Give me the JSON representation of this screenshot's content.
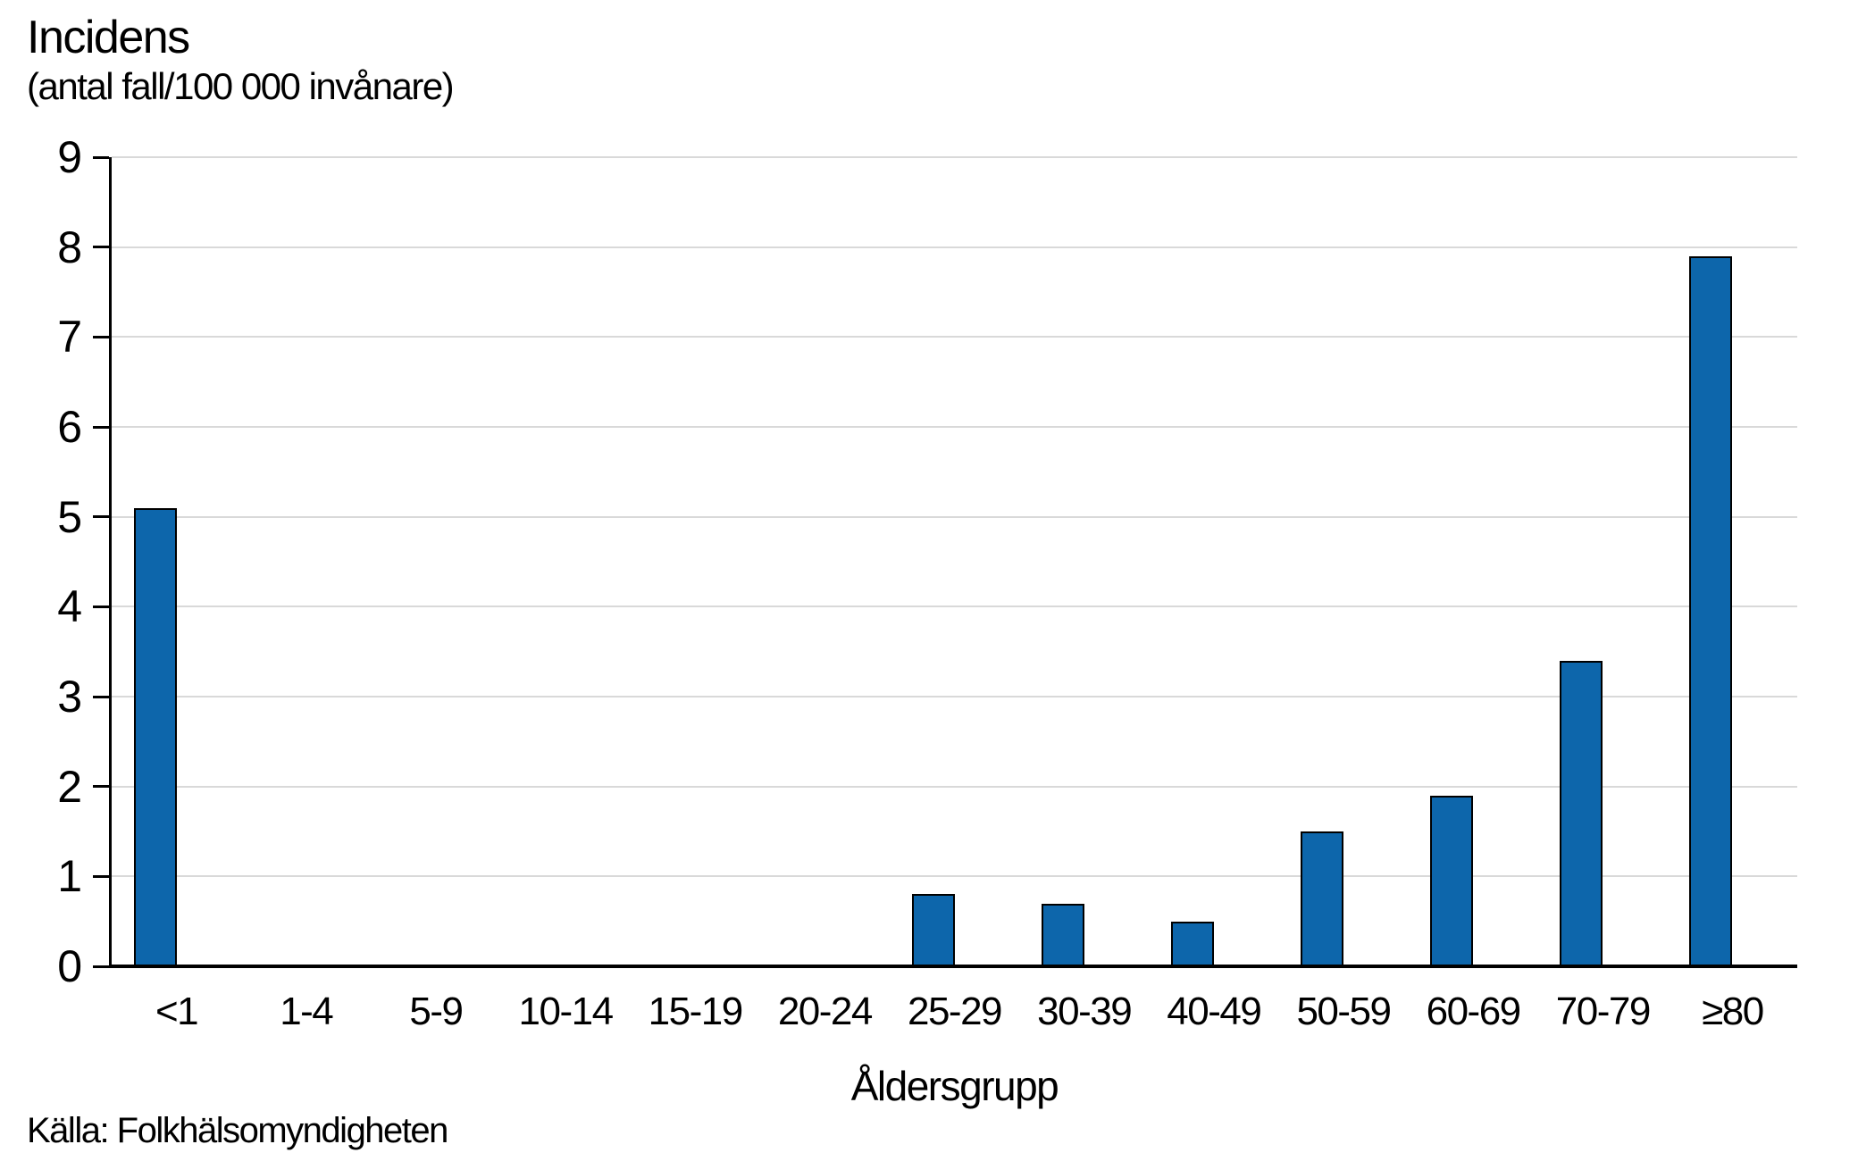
{
  "chart_data": {
    "type": "bar",
    "title": "Incidens",
    "subtitle": "(antal fall/100 000 invånare)",
    "categories": [
      "<1",
      "1-4",
      "5-9",
      "10-14",
      "15-19",
      "20-24",
      "25-29",
      "30-39",
      "40-49",
      "50-59",
      "60-69",
      "70-79",
      "≥80"
    ],
    "values": [
      5.1,
      0,
      0,
      0,
      0,
      0,
      0.8,
      0.7,
      0.5,
      1.5,
      1.9,
      3.4,
      7.9
    ],
    "xlabel": "Åldersgrupp",
    "ylabel": "Incidens (antal fall/100 000 invånare)",
    "ylim": [
      0,
      9
    ],
    "yticks": [
      0,
      1,
      2,
      3,
      4,
      5,
      6,
      7,
      8,
      9
    ],
    "grid": true,
    "legend_position": "none",
    "bar_color": "#0d66ab",
    "bar_border_color": "#000000",
    "gridline_color": "#d9d9d9",
    "axis_color": "#000000",
    "text_color": "#000000",
    "background_color": "#ffffff"
  },
  "source": {
    "label": "Källa: Folkhälsomyndigheten"
  }
}
